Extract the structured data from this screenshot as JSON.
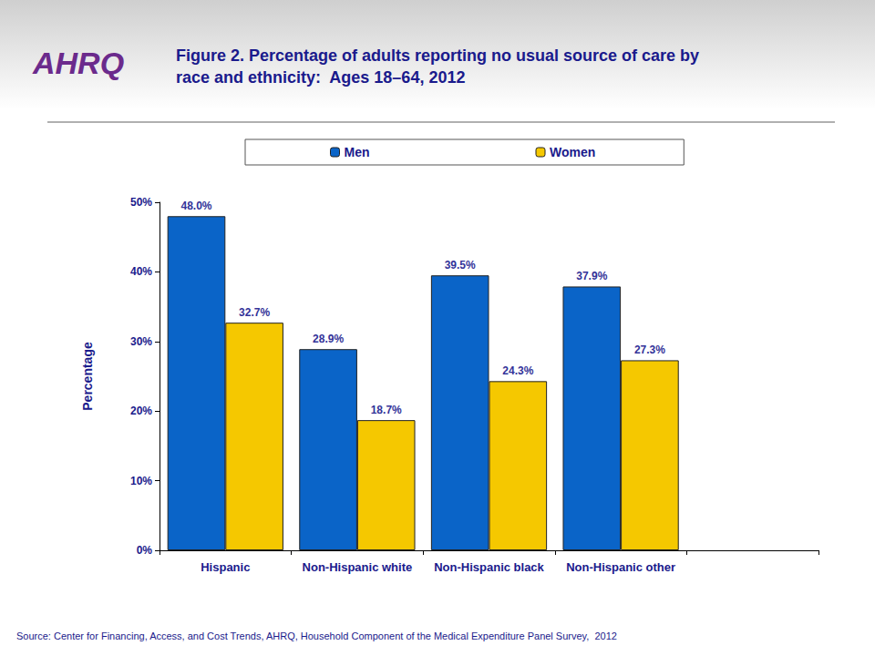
{
  "chart_data": {
    "type": "bar",
    "title": "Figure 2. Percentage of adults reporting no usual source of care by\nrace and ethnicity:  Ages 18–64, 2012",
    "logo": "AHRQ",
    "y_label": "Percentage",
    "source": "Source: Center for Financing, Access, and Cost Trends, AHRQ, Household Component of the Medical Expenditure Panel Survey,  2012",
    "categories": [
      "Hispanic",
      "Non-Hispanic white",
      "Non-Hispanic black",
      "Non-Hispanic other",
      null
    ],
    "series": [
      {
        "name": "Men",
        "color": "#0a64c8",
        "values": [
          48.0,
          28.9,
          39.5,
          37.9,
          null
        ],
        "value_labels": [
          "48.0%",
          "28.9%",
          "39.5%",
          "37.9%",
          null
        ]
      },
      {
        "name": "Women",
        "color": "#f5c800",
        "values": [
          32.7,
          18.7,
          24.3,
          27.3,
          null
        ],
        "value_labels": [
          "32.7%",
          "18.7%",
          "24.3%",
          "27.3%",
          null
        ]
      }
    ],
    "ylim": [
      0,
      50
    ],
    "yticks": [
      {
        "value": 0,
        "label": "0%"
      },
      {
        "value": 10,
        "label": "10%"
      },
      {
        "value": 20,
        "label": "20%"
      },
      {
        "value": 30,
        "label": "30%"
      },
      {
        "value": 40,
        "label": "40%"
      },
      {
        "value": 50,
        "label": "50%"
      }
    ],
    "grid": false,
    "legend": "top",
    "data_labels": true
  }
}
